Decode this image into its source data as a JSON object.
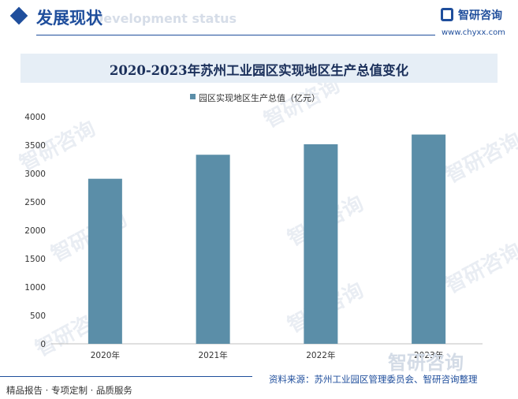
{
  "header": {
    "section_title": "发展现状",
    "section_ghost": "Development status",
    "logo_name": "智研咨询",
    "logo_url": "www.chyxx.com"
  },
  "colors": {
    "brand": "#1f4e9c",
    "bar": "#5b8ea8",
    "title_band": "#e6eef6"
  },
  "watermark": {
    "text": "智研咨询"
  },
  "chart_data": {
    "type": "bar",
    "title": "2020-2023年苏州工业园区实现地区生产总值变化",
    "categories": [
      "2020年",
      "2021年",
      "2022年",
      "2023年"
    ],
    "series": [
      {
        "name": "园区实现地区生产总值（亿元）",
        "values": [
          2907,
          3330,
          3515,
          3686
        ]
      }
    ],
    "ylim": [
      0,
      4000
    ],
    "yticks": [
      0,
      500,
      1000,
      1500,
      2000,
      2500,
      3000,
      3500,
      4000
    ],
    "legend_position": "top",
    "grid": false
  },
  "footer": {
    "tagline": "精品报告 · 专项定制 · 品质服务",
    "source": "资料来源：苏州工业园区管理委员会、智研咨询整理"
  }
}
